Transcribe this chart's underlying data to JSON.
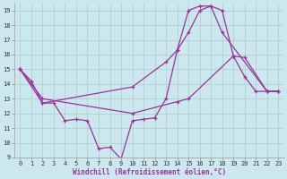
{
  "xlabel": "Windchill (Refroidissement éolien,°C)",
  "bg_color": "#cce8ee",
  "line_color": "#993399",
  "grid_color": "#aacccc",
  "xlim": [
    -0.5,
    23.5
  ],
  "ylim": [
    9,
    19.5
  ],
  "yticks": [
    9,
    10,
    11,
    12,
    13,
    14,
    15,
    16,
    17,
    18,
    19
  ],
  "xticks": [
    0,
    1,
    2,
    3,
    4,
    5,
    6,
    7,
    8,
    9,
    10,
    11,
    12,
    13,
    14,
    15,
    16,
    17,
    18,
    19,
    20,
    21,
    22,
    23
  ],
  "line1_x": [
    0,
    1,
    2,
    3,
    4,
    5,
    6,
    7,
    8,
    9,
    10,
    11,
    12,
    13,
    14,
    15,
    16,
    17,
    18,
    19,
    20,
    21,
    22,
    23
  ],
  "line1_y": [
    15.0,
    14.2,
    12.7,
    12.7,
    11.5,
    11.6,
    11.5,
    9.6,
    9.7,
    8.9,
    11.5,
    11.6,
    11.7,
    13.0,
    16.3,
    19.0,
    19.3,
    19.3,
    19.0,
    15.9,
    14.5,
    13.5,
    13.5,
    13.5
  ],
  "line2_x": [
    0,
    2,
    10,
    13,
    14,
    15,
    16,
    17,
    18,
    22,
    23
  ],
  "line2_y": [
    15.0,
    12.7,
    13.8,
    15.5,
    16.3,
    17.5,
    19.0,
    19.3,
    17.5,
    13.5,
    13.5
  ],
  "line3_x": [
    0,
    2,
    10,
    14,
    15,
    19,
    20,
    22,
    23
  ],
  "line3_y": [
    15.0,
    13.0,
    12.0,
    12.8,
    13.0,
    15.9,
    15.8,
    13.5,
    13.5
  ]
}
